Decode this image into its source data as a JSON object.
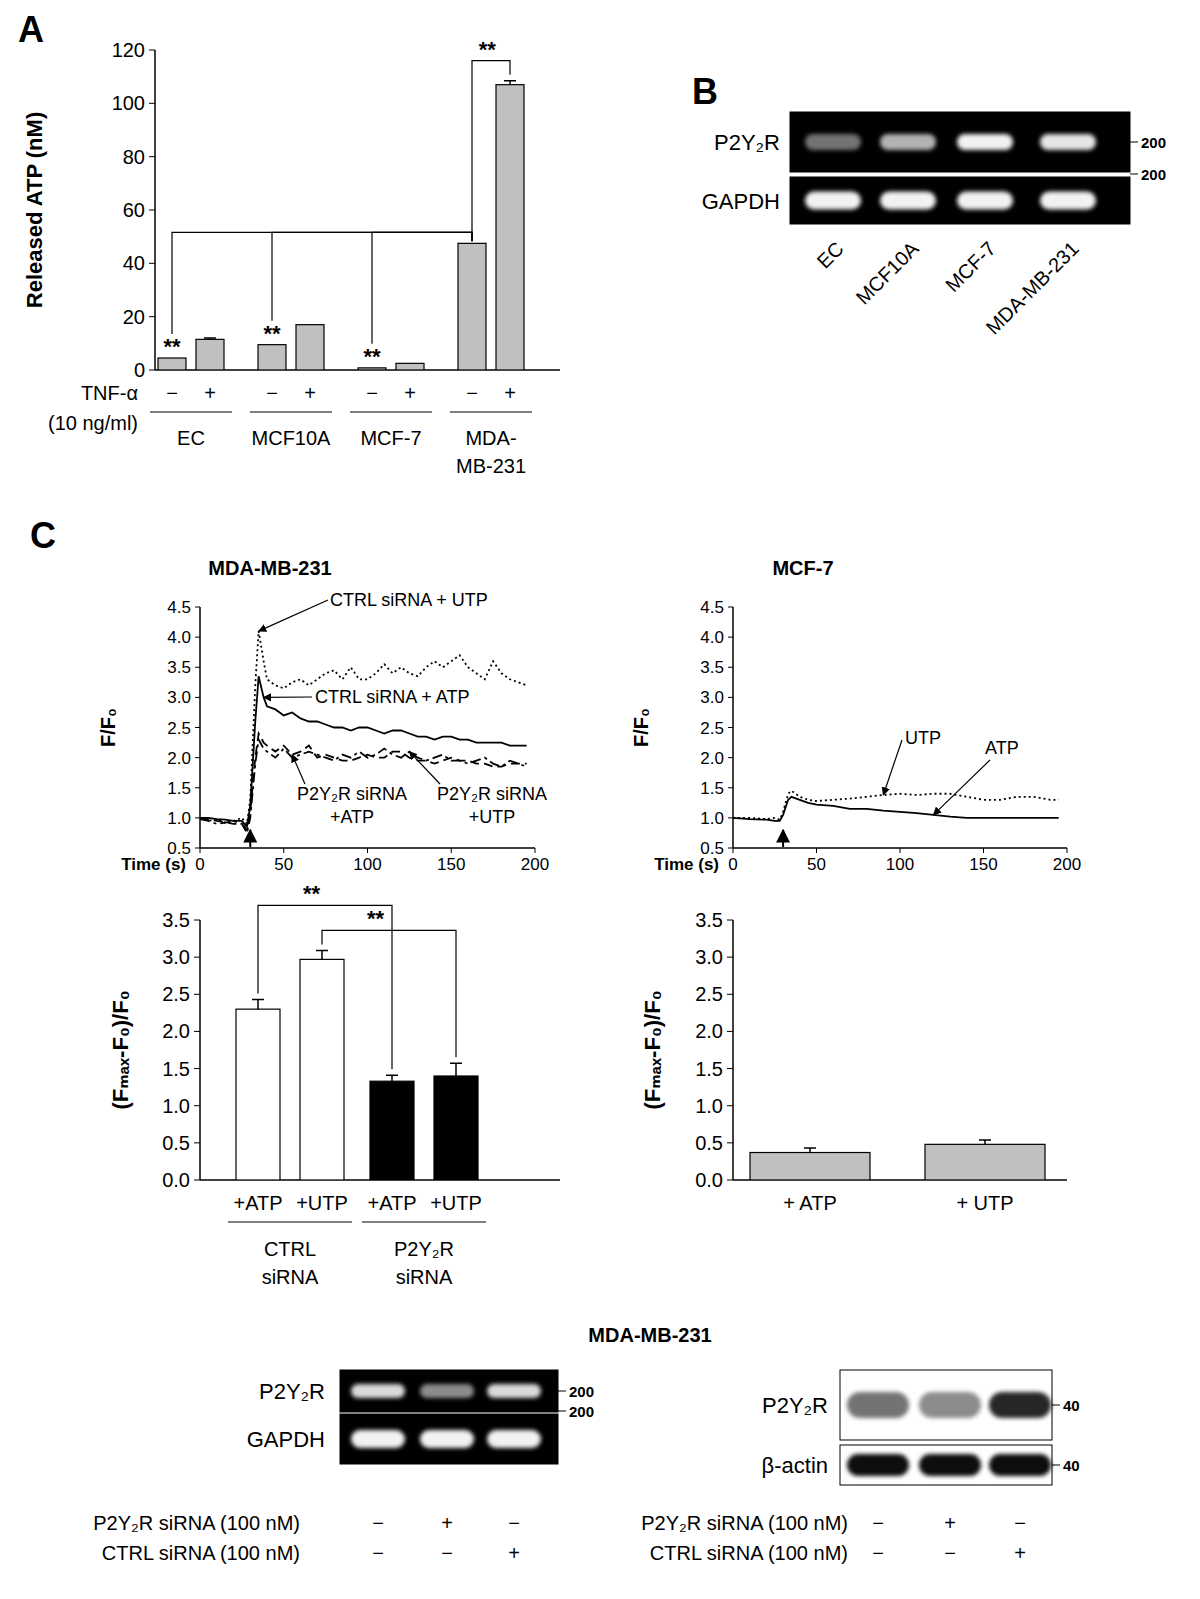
{
  "panel_labels": [
    "A",
    "B",
    "C"
  ],
  "chart_data": [
    {
      "type": "bar",
      "y_label": "Released ATP (nM)",
      "x_label_lines": [
        "TNF-α",
        "(10 ng/ml)"
      ],
      "categories": [
        "−",
        "+",
        "−",
        "+",
        "−",
        "+",
        "−",
        "+"
      ],
      "groups": [
        "EC",
        "MCF10A",
        "MCF-7",
        "MDA-MB-231"
      ],
      "values": [
        4.5,
        11.5,
        9.5,
        17,
        0.8,
        2.5,
        47.5,
        107
      ],
      "errors": [
        null,
        0.5,
        null,
        null,
        null,
        null,
        null,
        1.5
      ],
      "color": "#c0c0c0",
      "ylim": [
        0,
        120
      ],
      "yticks": [
        0,
        20,
        40,
        60,
        80,
        100,
        120
      ],
      "comparisons": [
        {
          "label": "**",
          "from": 0,
          "to": 6
        },
        {
          "label": "**",
          "from": 2,
          "to": 6
        },
        {
          "label": "**",
          "from": 4,
          "to": 6
        },
        {
          "label": "**",
          "from": 6,
          "to": 7
        }
      ]
    },
    {
      "type": "line",
      "title": "MDA-MB-231",
      "x_label": "Time (s)",
      "y_label": "F/F₀",
      "x": [
        0,
        5,
        10,
        15,
        20,
        25,
        28,
        30,
        33,
        35,
        38,
        40,
        45,
        50,
        55,
        60,
        65,
        70,
        75,
        80,
        85,
        90,
        95,
        100,
        105,
        110,
        115,
        120,
        125,
        130,
        135,
        140,
        145,
        150,
        155,
        160,
        165,
        170,
        175,
        180,
        185,
        190,
        195
      ],
      "series": [
        {
          "name": "CTRL siRNA + UTP",
          "color": "#000000",
          "line_style": "dotted",
          "values": [
            1.0,
            0.95,
            0.98,
            0.92,
            0.95,
            1.0,
            0.9,
            1.3,
            3.2,
            4.1,
            3.6,
            3.3,
            3.2,
            3.15,
            3.25,
            3.3,
            3.2,
            3.3,
            3.4,
            3.45,
            3.3,
            3.5,
            3.3,
            3.3,
            3.4,
            3.55,
            3.4,
            3.5,
            3.4,
            3.35,
            3.5,
            3.6,
            3.5,
            3.6,
            3.7,
            3.5,
            3.4,
            3.3,
            3.6,
            3.4,
            3.3,
            3.25,
            3.2
          ]
        },
        {
          "name": "CTRL siRNA + ATP",
          "color": "#000000",
          "line_style": "solid",
          "values": [
            1.0,
            1.0,
            0.98,
            0.97,
            0.95,
            0.95,
            0.85,
            1.2,
            2.6,
            3.35,
            3.0,
            2.85,
            2.8,
            2.7,
            2.75,
            2.65,
            2.6,
            2.6,
            2.55,
            2.5,
            2.5,
            2.45,
            2.5,
            2.5,
            2.45,
            2.4,
            2.45,
            2.45,
            2.4,
            2.35,
            2.35,
            2.3,
            2.35,
            2.35,
            2.3,
            2.3,
            2.25,
            2.25,
            2.25,
            2.25,
            2.2,
            2.2,
            2.2
          ]
        },
        {
          "name": "P2Y₂R siRNA +ATP",
          "color": "#000000",
          "line_style": "dashed",
          "values": [
            1.0,
            0.98,
            0.95,
            0.93,
            0.9,
            0.9,
            0.8,
            1.1,
            2.0,
            2.4,
            2.25,
            2.2,
            2.1,
            2.2,
            2.05,
            2.1,
            2.2,
            2.0,
            2.05,
            2.0,
            1.95,
            1.95,
            2.0,
            2.05,
            2.0,
            2.0,
            2.1,
            2.1,
            2.0,
            1.95,
            1.95,
            1.9,
            1.95,
            2.0,
            1.95,
            1.95,
            1.9,
            1.9,
            1.85,
            1.85,
            1.9,
            1.9,
            1.9
          ]
        },
        {
          "name": "P2Y₂R siRNA +UTP",
          "color": "#000000",
          "line_style": "dashdot",
          "values": [
            0.98,
            0.95,
            0.9,
            0.92,
            0.95,
            0.9,
            0.75,
            1.0,
            1.9,
            2.3,
            2.15,
            2.1,
            2.0,
            2.15,
            2.0,
            2.05,
            2.1,
            2.05,
            2.0,
            1.95,
            2.05,
            2.0,
            2.1,
            2.0,
            2.05,
            2.15,
            2.05,
            2.0,
            2.1,
            2.0,
            1.95,
            2.0,
            2.05,
            1.95,
            1.95,
            1.9,
            1.95,
            2.0,
            1.9,
            1.85,
            1.95,
            1.9,
            1.85
          ]
        }
      ],
      "stimulus_x": 30,
      "xlim": [
        0,
        200
      ],
      "xticks": [
        0,
        50,
        100,
        150,
        200
      ],
      "ylim": [
        0.5,
        4.5
      ],
      "yticks": [
        0.5,
        {
          "value": 1,
          "label": "1.0"
        },
        1.5,
        {
          "value": 2,
          "label": "2.0"
        },
        2.5,
        {
          "value": 3,
          "label": "3.0"
        },
        3.5,
        {
          "value": 4,
          "label": "4.0"
        },
        4.5
      ]
    },
    {
      "type": "line",
      "title": "MCF-7",
      "x_label": "Time (s)",
      "y_label": "F/F₀",
      "x": [
        0,
        10,
        20,
        25,
        28,
        30,
        33,
        35,
        40,
        45,
        50,
        60,
        70,
        80,
        90,
        100,
        110,
        120,
        130,
        140,
        150,
        160,
        170,
        180,
        190,
        195
      ],
      "series": [
        {
          "name": "UTP",
          "color": "#000000",
          "line_style": "dotted",
          "values": [
            1.0,
            1.0,
            0.98,
            1.0,
            0.97,
            1.1,
            1.4,
            1.45,
            1.35,
            1.3,
            1.28,
            1.3,
            1.32,
            1.35,
            1.38,
            1.4,
            1.38,
            1.4,
            1.4,
            1.35,
            1.3,
            1.3,
            1.35,
            1.35,
            1.3,
            1.3
          ]
        },
        {
          "name": "ATP",
          "color": "#000000",
          "line_style": "solid",
          "values": [
            1.0,
            0.98,
            0.97,
            0.95,
            0.95,
            1.05,
            1.3,
            1.35,
            1.3,
            1.25,
            1.22,
            1.2,
            1.15,
            1.15,
            1.12,
            1.1,
            1.08,
            1.05,
            1.02,
            1.0,
            1.0,
            1.0,
            1.0,
            1.0,
            1.0,
            1.0
          ]
        }
      ],
      "stimulus_x": 30,
      "xlim": [
        0,
        200
      ],
      "xticks": [
        0,
        50,
        100,
        150,
        200
      ],
      "ylim": [
        0.5,
        4.5
      ],
      "yticks": [
        0.5,
        {
          "value": 1,
          "label": "1.0"
        },
        1.5,
        {
          "value": 2,
          "label": "2.0"
        },
        2.5,
        {
          "value": 3,
          "label": "3.0"
        },
        3.5,
        {
          "value": 4,
          "label": "4.0"
        },
        4.5
      ]
    },
    {
      "type": "bar",
      "y_label": "(Fₘₐₓ-F₀)/F₀",
      "categories": [
        "+ATP",
        "+UTP",
        "+ATP",
        "+UTP"
      ],
      "groups": [
        "CTRL siRNA",
        "P2Y₂R siRNA"
      ],
      "values": [
        2.3,
        2.97,
        1.33,
        1.4
      ],
      "errors": [
        0.13,
        0.12,
        0.08,
        0.17
      ],
      "colors": [
        "#ffffff",
        "#ffffff",
        "#000000",
        "#000000"
      ],
      "ylim": [
        0,
        3.5
      ],
      "yticks": [
        {
          "value": 0,
          "label": "0.0"
        },
        0.5,
        {
          "value": 1,
          "label": "1.0"
        },
        1.5,
        {
          "value": 2,
          "label": "2.0"
        },
        2.5,
        {
          "value": 3,
          "label": "3.0"
        },
        3.5
      ],
      "comparisons": [
        {
          "label": "**",
          "from": 0,
          "to": 2
        },
        {
          "label": "**",
          "from": 1,
          "to": 3
        }
      ]
    },
    {
      "type": "bar",
      "y_label": "(Fₘₐₓ-F₀)/F₀",
      "categories": [
        "+ ATP",
        "+ UTP"
      ],
      "values": [
        0.37,
        0.48
      ],
      "errors": [
        0.06,
        0.06
      ],
      "color": "#c0c0c0",
      "ylim": [
        0,
        3.5
      ],
      "yticks": [
        {
          "value": 0,
          "label": "0.0"
        },
        0.5,
        {
          "value": 1,
          "label": "1.0"
        },
        1.5,
        {
          "value": 2,
          "label": "2.0"
        },
        2.5,
        {
          "value": 3,
          "label": "3.0"
        },
        3.5
      ]
    }
  ],
  "section_title": "MDA-MB-231",
  "gels": [
    {
      "background": "#000000",
      "band_color": "#ffffff",
      "rows": [
        {
          "label": "P2Y₂R",
          "marker": 200,
          "intensity": [
            0.45,
            0.7,
            0.95,
            0.9
          ]
        },
        {
          "label": "GAPDH",
          "marker": 200,
          "intensity": [
            0.95,
            0.95,
            0.95,
            0.95
          ]
        }
      ],
      "lanes": [
        "EC",
        "MCF10A",
        "MCF-7",
        "MDA-MB-231"
      ]
    },
    {
      "background": "#000000",
      "band_color": "#ffffff",
      "rows": [
        {
          "label": "P2Y₂R",
          "marker": 200,
          "intensity": [
            0.85,
            0.55,
            0.85
          ]
        },
        {
          "label": "GAPDH",
          "marker": 200,
          "intensity": [
            0.95,
            0.95,
            0.95
          ]
        }
      ],
      "conditions": [
        {
          "label": "P2Y₂R siRNA (100 nM)",
          "signs": [
            "−",
            "+",
            "−"
          ]
        },
        {
          "label": "CTRL siRNA (100 nM)",
          "signs": [
            "−",
            "−",
            "+"
          ]
        }
      ]
    },
    {
      "background": "#ffffff",
      "band_color": "#000000",
      "rows": [
        {
          "label": "P2Y₂R",
          "marker": 40,
          "intensity": [
            0.55,
            0.45,
            0.85
          ]
        },
        {
          "label": "β-actin",
          "marker": 40,
          "intensity": [
            0.95,
            0.95,
            0.95
          ]
        }
      ],
      "conditions": [
        {
          "label": "P2Y₂R siRNA (100 nM)",
          "signs": [
            "−",
            "+",
            "−"
          ]
        },
        {
          "label": "CTRL siRNA (100 nM)",
          "signs": [
            "−",
            "−",
            "+"
          ]
        }
      ]
    }
  ]
}
